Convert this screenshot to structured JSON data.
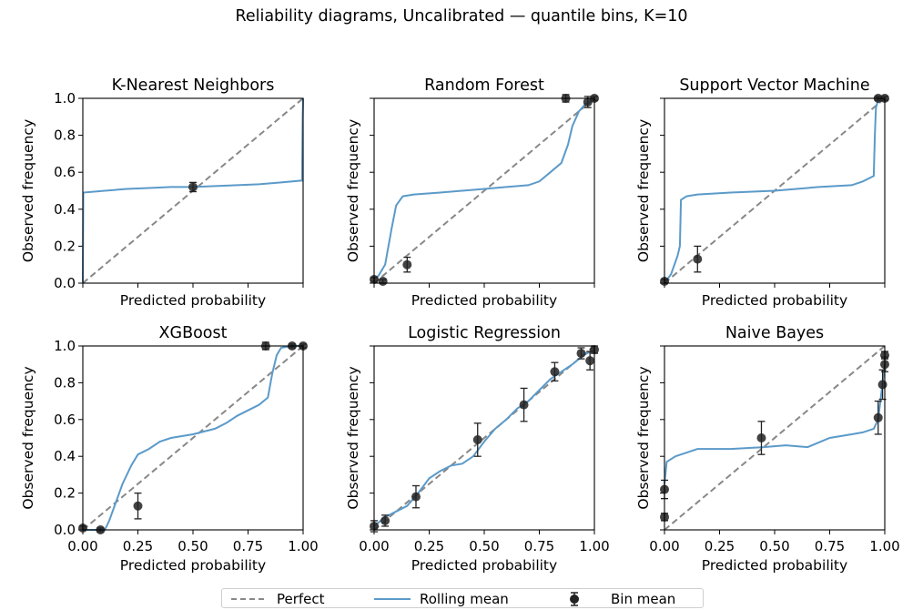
{
  "figure_title": "Reliability diagrams, Uncalibrated  —  quantile bins, K=10",
  "colors": {
    "perfect": "#888888",
    "rolling": "#5b9ac9",
    "bin": "#222222"
  },
  "legend": {
    "placement": "bottom-center",
    "perfect_label": "Perfect",
    "rolling_label": "Rolling mean",
    "bin_label": "Bin mean"
  },
  "chart_data": [
    {
      "type": "line",
      "title": "K-Nearest Neighbors",
      "xlabel": "Predicted probability",
      "ylabel": "Observed frequency",
      "xlim": [
        0,
        1
      ],
      "ylim": [
        0,
        1
      ],
      "x_ticks": [],
      "y_ticks": [
        "0.0",
        "0.2",
        "0.4",
        "0.6",
        "0.8",
        "1.0"
      ],
      "rolling": [
        [
          0,
          0.0
        ],
        [
          0.002,
          0.49
        ],
        [
          0.1,
          0.5
        ],
        [
          0.2,
          0.51
        ],
        [
          0.3,
          0.515
        ],
        [
          0.4,
          0.52
        ],
        [
          0.5,
          0.52
        ],
        [
          0.6,
          0.525
        ],
        [
          0.7,
          0.53
        ],
        [
          0.8,
          0.535
        ],
        [
          0.9,
          0.545
        ],
        [
          0.995,
          0.555
        ],
        [
          0.998,
          0.9
        ],
        [
          1.0,
          1.0
        ]
      ],
      "bins": [
        {
          "x": 0.5,
          "y": 0.52,
          "err": 0.025
        }
      ]
    },
    {
      "type": "line",
      "title": "Random Forest",
      "xlabel": "Predicted probability",
      "ylabel": "Observed frequency",
      "xlim": [
        0,
        1
      ],
      "ylim": [
        0,
        1
      ],
      "x_ticks": [],
      "y_ticks": [],
      "rolling": [
        [
          0,
          0.02
        ],
        [
          0.02,
          0.04
        ],
        [
          0.05,
          0.1
        ],
        [
          0.08,
          0.3
        ],
        [
          0.1,
          0.42
        ],
        [
          0.13,
          0.47
        ],
        [
          0.18,
          0.48
        ],
        [
          0.3,
          0.49
        ],
        [
          0.5,
          0.51
        ],
        [
          0.6,
          0.52
        ],
        [
          0.7,
          0.53
        ],
        [
          0.75,
          0.55
        ],
        [
          0.8,
          0.6
        ],
        [
          0.85,
          0.65
        ],
        [
          0.88,
          0.75
        ],
        [
          0.9,
          0.85
        ],
        [
          0.93,
          0.93
        ],
        [
          0.96,
          0.97
        ],
        [
          0.98,
          0.98
        ],
        [
          1.0,
          1.0
        ]
      ],
      "bins": [
        {
          "x": 0.0,
          "y": 0.02,
          "err": 0.01
        },
        {
          "x": 0.04,
          "y": 0.01,
          "err": 0.01
        },
        {
          "x": 0.15,
          "y": 0.1,
          "err": 0.04
        },
        {
          "x": 0.87,
          "y": 1.0,
          "err": 0.02
        },
        {
          "x": 0.97,
          "y": 0.98,
          "err": 0.03
        },
        {
          "x": 1.0,
          "y": 1.0,
          "err": 0.01
        }
      ]
    },
    {
      "type": "line",
      "title": "Support Vector Machine",
      "xlabel": "Predicted probability",
      "ylabel": "Observed frequency",
      "xlim": [
        0,
        1
      ],
      "ylim": [
        0,
        1
      ],
      "x_ticks": [],
      "y_ticks": [],
      "rolling": [
        [
          0,
          0.0
        ],
        [
          0.03,
          0.05
        ],
        [
          0.06,
          0.15
        ],
        [
          0.07,
          0.2
        ],
        [
          0.075,
          0.45
        ],
        [
          0.1,
          0.47
        ],
        [
          0.15,
          0.48
        ],
        [
          0.3,
          0.49
        ],
        [
          0.5,
          0.5
        ],
        [
          0.7,
          0.52
        ],
        [
          0.85,
          0.53
        ],
        [
          0.9,
          0.55
        ],
        [
          0.95,
          0.58
        ],
        [
          0.955,
          0.8
        ],
        [
          0.96,
          0.95
        ],
        [
          0.97,
          0.99
        ],
        [
          1.0,
          1.0
        ]
      ],
      "bins": [
        {
          "x": 0.0,
          "y": 0.01,
          "err": 0.01
        },
        {
          "x": 0.15,
          "y": 0.13,
          "err": 0.07
        },
        {
          "x": 0.97,
          "y": 1.0,
          "err": 0.01
        },
        {
          "x": 1.0,
          "y": 1.0,
          "err": 0.01
        }
      ]
    },
    {
      "type": "line",
      "title": "XGBoost",
      "xlabel": "Predicted probability",
      "ylabel": "Observed frequency",
      "xlim": [
        0,
        1
      ],
      "ylim": [
        0,
        1
      ],
      "x_ticks": [
        "0.00",
        "0.25",
        "0.50",
        "0.75",
        "1.00"
      ],
      "y_ticks": [
        "0.0",
        "0.2",
        "0.4",
        "0.6",
        "0.8",
        "1.0"
      ],
      "rolling": [
        [
          0,
          0.0
        ],
        [
          0.1,
          0.0
        ],
        [
          0.12,
          0.05
        ],
        [
          0.15,
          0.15
        ],
        [
          0.18,
          0.25
        ],
        [
          0.22,
          0.35
        ],
        [
          0.25,
          0.41
        ],
        [
          0.3,
          0.44
        ],
        [
          0.35,
          0.48
        ],
        [
          0.4,
          0.5
        ],
        [
          0.5,
          0.52
        ],
        [
          0.6,
          0.55
        ],
        [
          0.65,
          0.58
        ],
        [
          0.7,
          0.62
        ],
        [
          0.75,
          0.65
        ],
        [
          0.8,
          0.68
        ],
        [
          0.84,
          0.72
        ],
        [
          0.86,
          0.85
        ],
        [
          0.88,
          0.95
        ],
        [
          0.9,
          0.99
        ],
        [
          0.95,
          1.0
        ],
        [
          1.0,
          1.0
        ]
      ],
      "bins": [
        {
          "x": 0.0,
          "y": 0.01,
          "err": 0.01
        },
        {
          "x": 0.08,
          "y": 0.0,
          "err": 0.01
        },
        {
          "x": 0.25,
          "y": 0.13,
          "err": 0.07
        },
        {
          "x": 0.83,
          "y": 1.0,
          "err": 0.02
        },
        {
          "x": 0.95,
          "y": 1.0,
          "err": 0.01
        },
        {
          "x": 1.0,
          "y": 1.0,
          "err": 0.01
        }
      ]
    },
    {
      "type": "line",
      "title": "Logistic Regression",
      "xlabel": "Predicted probability",
      "ylabel": "Observed frequency",
      "xlim": [
        0,
        1
      ],
      "ylim": [
        0,
        1
      ],
      "x_ticks": [
        "0.00",
        "0.25",
        "0.50",
        "0.75",
        "1.00"
      ],
      "y_ticks": [],
      "rolling": [
        [
          0,
          0.02
        ],
        [
          0.05,
          0.07
        ],
        [
          0.1,
          0.1
        ],
        [
          0.15,
          0.13
        ],
        [
          0.2,
          0.2
        ],
        [
          0.25,
          0.28
        ],
        [
          0.3,
          0.32
        ],
        [
          0.35,
          0.35
        ],
        [
          0.4,
          0.36
        ],
        [
          0.45,
          0.4
        ],
        [
          0.5,
          0.48
        ],
        [
          0.55,
          0.55
        ],
        [
          0.6,
          0.6
        ],
        [
          0.65,
          0.66
        ],
        [
          0.7,
          0.7
        ],
        [
          0.75,
          0.76
        ],
        [
          0.8,
          0.82
        ],
        [
          0.85,
          0.86
        ],
        [
          0.9,
          0.9
        ],
        [
          0.95,
          0.95
        ],
        [
          1.0,
          0.98
        ]
      ],
      "bins": [
        {
          "x": 0.0,
          "y": 0.02,
          "err": 0.03
        },
        {
          "x": 0.05,
          "y": 0.05,
          "err": 0.03
        },
        {
          "x": 0.19,
          "y": 0.18,
          "err": 0.06
        },
        {
          "x": 0.47,
          "y": 0.49,
          "err": 0.09
        },
        {
          "x": 0.68,
          "y": 0.68,
          "err": 0.09
        },
        {
          "x": 0.82,
          "y": 0.86,
          "err": 0.05
        },
        {
          "x": 0.94,
          "y": 0.96,
          "err": 0.03
        },
        {
          "x": 0.98,
          "y": 0.92,
          "err": 0.05
        },
        {
          "x": 1.0,
          "y": 0.98,
          "err": 0.02
        }
      ]
    },
    {
      "type": "line",
      "title": "Naive Bayes",
      "xlabel": "Predicted probability",
      "ylabel": "Observed frequency",
      "xlim": [
        0,
        1
      ],
      "ylim": [
        0,
        1
      ],
      "x_ticks": [
        "0.00",
        "0.25",
        "0.50",
        "0.75",
        "1.00"
      ],
      "y_ticks": [],
      "rolling": [
        [
          0,
          0.25
        ],
        [
          0.01,
          0.37
        ],
        [
          0.05,
          0.4
        ],
        [
          0.1,
          0.42
        ],
        [
          0.15,
          0.44
        ],
        [
          0.3,
          0.44
        ],
        [
          0.45,
          0.45
        ],
        [
          0.55,
          0.46
        ],
        [
          0.65,
          0.45
        ],
        [
          0.75,
          0.5
        ],
        [
          0.85,
          0.52
        ],
        [
          0.9,
          0.53
        ],
        [
          0.95,
          0.55
        ],
        [
          0.97,
          0.6
        ],
        [
          0.98,
          0.7
        ],
        [
          0.99,
          0.8
        ],
        [
          1.0,
          0.9
        ]
      ],
      "bins": [
        {
          "x": 0.0,
          "y": 0.07,
          "err": 0.02
        },
        {
          "x": 0.0,
          "y": 0.22,
          "err": 0.05
        },
        {
          "x": 0.44,
          "y": 0.5,
          "err": 0.09
        },
        {
          "x": 0.97,
          "y": 0.61,
          "err": 0.09
        },
        {
          "x": 0.99,
          "y": 0.79,
          "err": 0.08
        },
        {
          "x": 1.0,
          "y": 0.9,
          "err": 0.04
        },
        {
          "x": 1.0,
          "y": 0.95,
          "err": 0.02
        }
      ]
    }
  ]
}
